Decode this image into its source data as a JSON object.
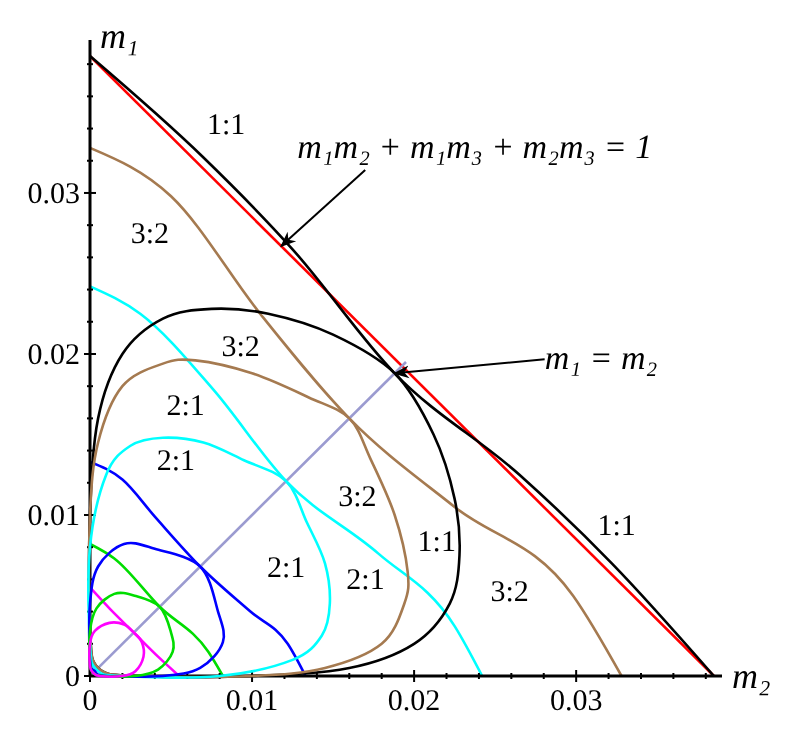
{
  "chart_data": {
    "type": "line",
    "xlabel": "m₂",
    "ylabel": "m₁",
    "xlim": [
      0,
      0.039
    ],
    "ylim": [
      0,
      0.0395
    ],
    "xticks": [
      0,
      {
        "value": 0.002,
        "label": null
      },
      {
        "value": 0.004,
        "label": null
      },
      {
        "value": 0.006,
        "label": null
      },
      {
        "value": 0.008,
        "label": null
      },
      0.01,
      {
        "value": 0.012,
        "label": null
      },
      {
        "value": 0.014,
        "label": null
      },
      {
        "value": 0.016,
        "label": null
      },
      {
        "value": 0.018,
        "label": null
      },
      0.02,
      {
        "value": 0.022,
        "label": null
      },
      {
        "value": 0.024,
        "label": null
      },
      {
        "value": 0.026,
        "label": null
      },
      {
        "value": 0.028,
        "label": null
      },
      0.03,
      {
        "value": 0.032,
        "label": null
      },
      {
        "value": 0.034,
        "label": null
      },
      {
        "value": 0.036,
        "label": null
      },
      {
        "value": 0.038,
        "label": null
      }
    ],
    "yticks": [
      0,
      {
        "value": 0.002,
        "label": null
      },
      {
        "value": 0.004,
        "label": null
      },
      {
        "value": 0.006,
        "label": null
      },
      {
        "value": 0.008,
        "label": null
      },
      0.01,
      {
        "value": 0.012,
        "label": null
      },
      {
        "value": 0.014,
        "label": null
      },
      {
        "value": 0.016,
        "label": null
      },
      {
        "value": 0.018,
        "label": null
      },
      0.02,
      {
        "value": 0.022,
        "label": null
      },
      {
        "value": 0.024,
        "label": null
      },
      {
        "value": 0.026,
        "label": null
      },
      {
        "value": 0.028,
        "label": null
      },
      0.03,
      {
        "value": 0.032,
        "label": null
      },
      {
        "value": 0.034,
        "label": null
      },
      {
        "value": 0.036,
        "label": null
      },
      {
        "value": 0.038,
        "label": null
      }
    ],
    "grid": false,
    "line_style": "solid",
    "series": [
      {
        "color": "#ff0000",
        "x": [
          0,
          0.0385
        ],
        "values": [
          0.0385,
          0
        ]
      },
      {
        "color": "#000000",
        "x": [
          0,
          0.007,
          0.0125,
          0.0188,
          0.0265,
          0.0322,
          0.0385
        ],
        "values": [
          0.0385,
          0.0322,
          0.0265,
          0.0188,
          0.0125,
          0.007,
          0
        ]
      },
      {
        "color": "#a57a50",
        "x": [
          0,
          0.005,
          0.0105,
          0.016,
          0.0225,
          0.0298,
          0.0328
        ],
        "values": [
          0.0328,
          0.0298,
          0.0225,
          0.016,
          0.0105,
          0.005,
          0
        ]
      },
      {
        "color": "#00ffff",
        "x": [
          0,
          0.0031,
          0.0076,
          0.0121,
          0.0178,
          0.0225,
          0.0242
        ],
        "values": [
          0.0242,
          0.0225,
          0.0178,
          0.0121,
          0.0076,
          0.0031,
          0
        ]
      },
      {
        "color": "#0000ff",
        "x": [
          0,
          0.002,
          0.004,
          0.0068,
          0.0099,
          0.0122,
          0.0133
        ],
        "values": [
          0.0133,
          0.0122,
          0.0099,
          0.0068,
          0.004,
          0.002,
          0
        ]
      },
      {
        "color": "#00dd00",
        "x": [
          0,
          0.0015,
          0.0043,
          0.0073,
          0.0082
        ],
        "values": [
          0.0082,
          0.0073,
          0.0043,
          0.0015,
          0
        ]
      },
      {
        "color": "#ff00ff",
        "x": [
          0,
          0.0012,
          0.0027,
          0.0042,
          0.0055
        ],
        "values": [
          0.0055,
          0.0042,
          0.0027,
          0.0012,
          0
        ]
      },
      {
        "color": "#9b9bd0",
        "x": [
          0,
          0.0195
        ],
        "values": [
          0,
          0.0195
        ]
      }
    ],
    "annotations": [
      "1:1",
      "3:2",
      "3:2",
      "2:1",
      "2:1",
      "3:2",
      "1:1",
      "2:1",
      "2:1",
      "3:2",
      "1:1",
      {
        "text": "m₁m₂ + m₁m₃ + m₂m₃ = 1",
        "x": 0.0118,
        "y": 0.0267
      },
      {
        "text": "m₁ = m₂",
        "x": 0.0188,
        "y": 0.0188
      }
    ]
  }
}
